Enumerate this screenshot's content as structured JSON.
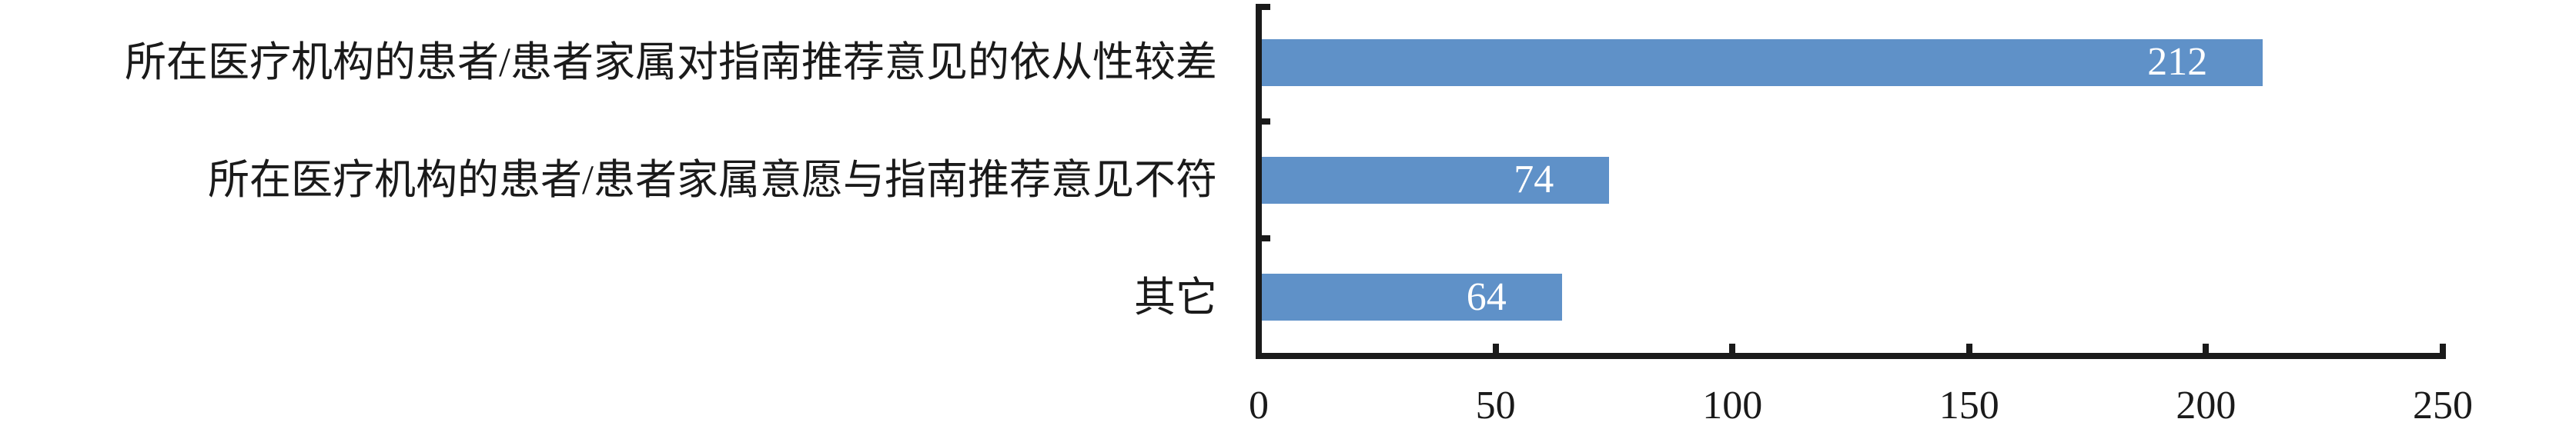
{
  "chart_data": {
    "type": "bar",
    "orientation": "horizontal",
    "categories": [
      "所在医疗机构的患者/患者家属对指南推荐意见的依从性较差",
      "所在医疗机构的患者/患者家属意愿与指南推荐意见不符",
      "其它"
    ],
    "values": [
      212,
      74,
      64
    ],
    "value_labels": [
      "212",
      "74",
      "64"
    ],
    "xticks": [
      "0",
      "50",
      "100",
      "150",
      "200",
      "250"
    ],
    "xlim": [
      0,
      250
    ],
    "grid": false,
    "legend": false,
    "bar_color": "#5F91C8",
    "value_label_color": "#FFFFFF",
    "axis_color": "#1A1A1A"
  }
}
